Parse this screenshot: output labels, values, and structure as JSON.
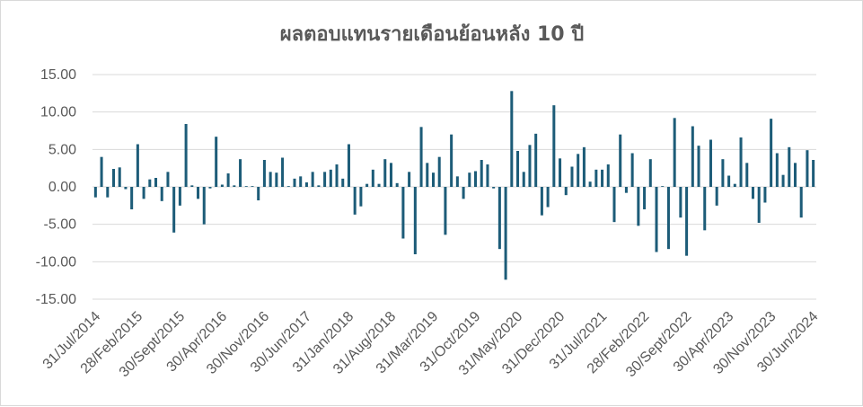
{
  "chart_data": {
    "type": "bar",
    "title": "ผลตอบแทนรายเดือนย้อนหลัง 10 ปี",
    "xlabel": "",
    "ylabel": "",
    "ylim": [
      -15,
      15
    ],
    "yticks": [
      "15.00",
      "10.00",
      "5.00",
      "0.00",
      "-5.00",
      "-10.00",
      "-15.00"
    ],
    "grid": true,
    "legend": "none",
    "bar_color": "#1d5c78",
    "x_tick_labels": [
      "31/Jul/2014",
      "28/Feb/2015",
      "30/Sept/2015",
      "30/Apr/2016",
      "30/Nov/2016",
      "30/Jun/2017",
      "31/Jan/2018",
      "31/Aug/2018",
      "31/Mar/2019",
      "31/Oct/2019",
      "31/May/2020",
      "31/Dec/2020",
      "31/Jul/2021",
      "28/Feb/2022",
      "30/Sept/2022",
      "30/Apr/2023",
      "30/Nov/2023",
      "30/Jun/2024"
    ],
    "x_tick_every": 7,
    "values": [
      -1.4,
      4.0,
      -1.4,
      2.4,
      2.6,
      -0.3,
      -3.0,
      5.7,
      -1.6,
      1.0,
      1.2,
      -1.9,
      2.0,
      -6.1,
      -2.5,
      8.4,
      0.2,
      -1.6,
      -5.0,
      -0.2,
      6.7,
      0.3,
      1.8,
      0.2,
      3.7,
      0.1,
      0.1,
      -1.8,
      3.6,
      2.0,
      1.9,
      3.9,
      0.1,
      1.1,
      1.4,
      0.6,
      2.0,
      0.2,
      2.0,
      2.3,
      3.0,
      1.1,
      5.7,
      -3.7,
      -2.6,
      0.4,
      2.3,
      0.4,
      3.7,
      3.2,
      0.5,
      -6.9,
      2.0,
      -9.0,
      8.0,
      3.2,
      1.9,
      4.0,
      -6.4,
      7.0,
      1.4,
      -1.6,
      1.9,
      2.1,
      3.6,
      3.0,
      -0.2,
      -8.3,
      -12.4,
      12.8,
      4.8,
      2.0,
      5.6,
      7.1,
      -3.8,
      -2.7,
      10.9,
      3.8,
      -1.1,
      2.7,
      4.4,
      5.3,
      0.7,
      2.3,
      2.3,
      3.0,
      -4.7,
      7.0,
      -0.8,
      4.5,
      -5.2,
      -3.0,
      3.7,
      -8.7,
      0.1,
      -8.3,
      9.2,
      -4.1,
      -9.2,
      8.1,
      5.5,
      -5.8,
      6.3,
      -2.5,
      3.7,
      1.5,
      0.4,
      6.6,
      3.2,
      -1.6,
      -4.8,
      -2.1,
      9.1,
      4.5,
      1.6,
      5.3,
      3.2,
      -4.1,
      4.9,
      3.6
    ]
  }
}
